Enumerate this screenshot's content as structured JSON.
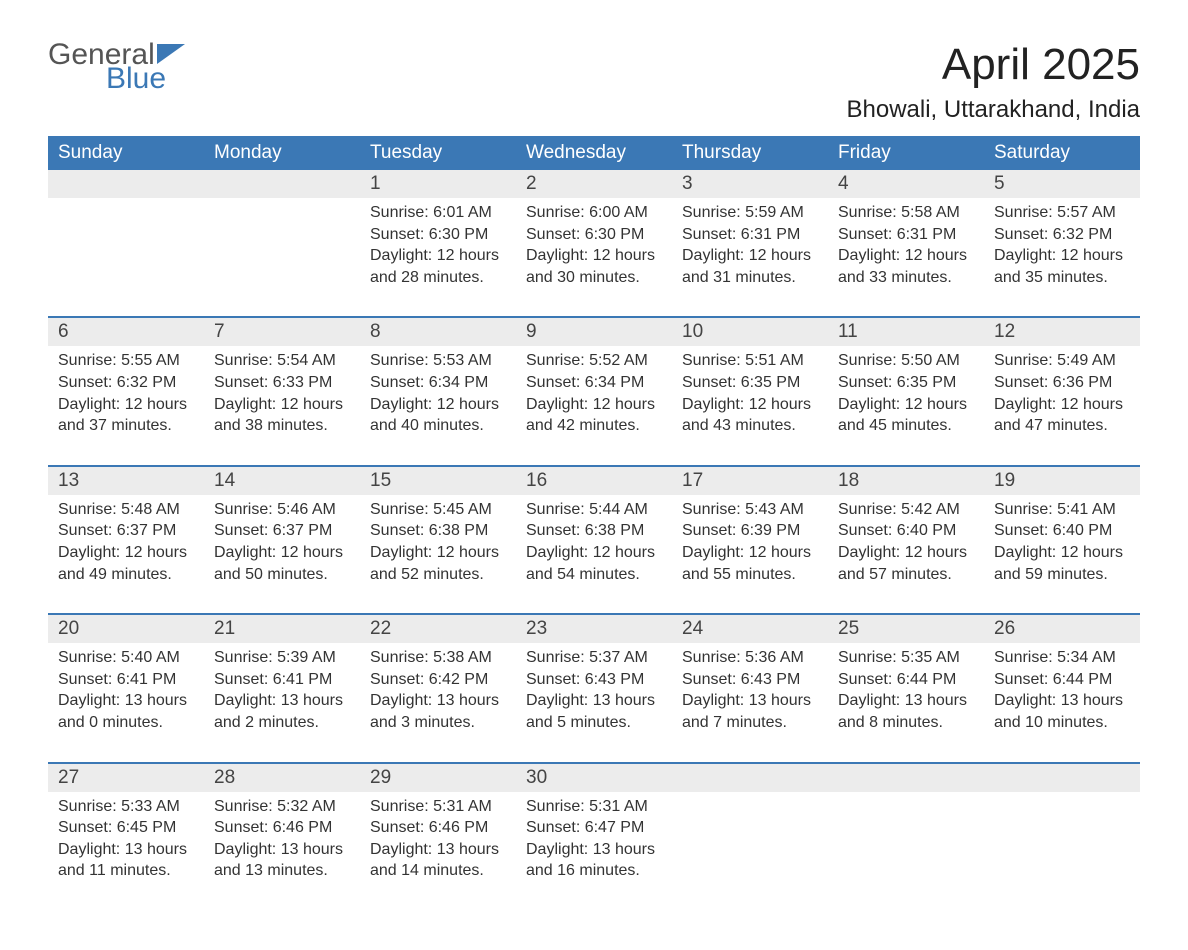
{
  "logo": {
    "word1": "General",
    "word2": "Blue",
    "flag_color": "#3b78b5",
    "word1_color": "#555555"
  },
  "title": "April 2025",
  "location": "Bhowali, Uttarakhand, India",
  "colors": {
    "header_bg": "#3b78b5",
    "header_text": "#ffffff",
    "daynum_bg": "#ececec",
    "row_divider": "#3b78b5",
    "body_text": "#333333",
    "page_bg": "#ffffff"
  },
  "layout": {
    "columns": 7,
    "rows": 5,
    "first_day_column": 2,
    "last_day": 30
  },
  "weekdays": [
    "Sunday",
    "Monday",
    "Tuesday",
    "Wednesday",
    "Thursday",
    "Friday",
    "Saturday"
  ],
  "labels": {
    "sunrise": "Sunrise",
    "sunset": "Sunset",
    "daylight_prefix": "Daylight",
    "and": "and",
    "minutes": "minutes.",
    "hours": "hours"
  },
  "days": [
    {
      "n": 1,
      "sunrise": "6:01 AM",
      "sunset": "6:30 PM",
      "dl_h": 12,
      "dl_m": 28
    },
    {
      "n": 2,
      "sunrise": "6:00 AM",
      "sunset": "6:30 PM",
      "dl_h": 12,
      "dl_m": 30
    },
    {
      "n": 3,
      "sunrise": "5:59 AM",
      "sunset": "6:31 PM",
      "dl_h": 12,
      "dl_m": 31
    },
    {
      "n": 4,
      "sunrise": "5:58 AM",
      "sunset": "6:31 PM",
      "dl_h": 12,
      "dl_m": 33
    },
    {
      "n": 5,
      "sunrise": "5:57 AM",
      "sunset": "6:32 PM",
      "dl_h": 12,
      "dl_m": 35
    },
    {
      "n": 6,
      "sunrise": "5:55 AM",
      "sunset": "6:32 PM",
      "dl_h": 12,
      "dl_m": 37
    },
    {
      "n": 7,
      "sunrise": "5:54 AM",
      "sunset": "6:33 PM",
      "dl_h": 12,
      "dl_m": 38
    },
    {
      "n": 8,
      "sunrise": "5:53 AM",
      "sunset": "6:34 PM",
      "dl_h": 12,
      "dl_m": 40
    },
    {
      "n": 9,
      "sunrise": "5:52 AM",
      "sunset": "6:34 PM",
      "dl_h": 12,
      "dl_m": 42
    },
    {
      "n": 10,
      "sunrise": "5:51 AM",
      "sunset": "6:35 PM",
      "dl_h": 12,
      "dl_m": 43
    },
    {
      "n": 11,
      "sunrise": "5:50 AM",
      "sunset": "6:35 PM",
      "dl_h": 12,
      "dl_m": 45
    },
    {
      "n": 12,
      "sunrise": "5:49 AM",
      "sunset": "6:36 PM",
      "dl_h": 12,
      "dl_m": 47
    },
    {
      "n": 13,
      "sunrise": "5:48 AM",
      "sunset": "6:37 PM",
      "dl_h": 12,
      "dl_m": 49
    },
    {
      "n": 14,
      "sunrise": "5:46 AM",
      "sunset": "6:37 PM",
      "dl_h": 12,
      "dl_m": 50
    },
    {
      "n": 15,
      "sunrise": "5:45 AM",
      "sunset": "6:38 PM",
      "dl_h": 12,
      "dl_m": 52
    },
    {
      "n": 16,
      "sunrise": "5:44 AM",
      "sunset": "6:38 PM",
      "dl_h": 12,
      "dl_m": 54
    },
    {
      "n": 17,
      "sunrise": "5:43 AM",
      "sunset": "6:39 PM",
      "dl_h": 12,
      "dl_m": 55
    },
    {
      "n": 18,
      "sunrise": "5:42 AM",
      "sunset": "6:40 PM",
      "dl_h": 12,
      "dl_m": 57
    },
    {
      "n": 19,
      "sunrise": "5:41 AM",
      "sunset": "6:40 PM",
      "dl_h": 12,
      "dl_m": 59
    },
    {
      "n": 20,
      "sunrise": "5:40 AM",
      "sunset": "6:41 PM",
      "dl_h": 13,
      "dl_m": 0
    },
    {
      "n": 21,
      "sunrise": "5:39 AM",
      "sunset": "6:41 PM",
      "dl_h": 13,
      "dl_m": 2
    },
    {
      "n": 22,
      "sunrise": "5:38 AM",
      "sunset": "6:42 PM",
      "dl_h": 13,
      "dl_m": 3
    },
    {
      "n": 23,
      "sunrise": "5:37 AM",
      "sunset": "6:43 PM",
      "dl_h": 13,
      "dl_m": 5
    },
    {
      "n": 24,
      "sunrise": "5:36 AM",
      "sunset": "6:43 PM",
      "dl_h": 13,
      "dl_m": 7
    },
    {
      "n": 25,
      "sunrise": "5:35 AM",
      "sunset": "6:44 PM",
      "dl_h": 13,
      "dl_m": 8
    },
    {
      "n": 26,
      "sunrise": "5:34 AM",
      "sunset": "6:44 PM",
      "dl_h": 13,
      "dl_m": 10
    },
    {
      "n": 27,
      "sunrise": "5:33 AM",
      "sunset": "6:45 PM",
      "dl_h": 13,
      "dl_m": 11
    },
    {
      "n": 28,
      "sunrise": "5:32 AM",
      "sunset": "6:46 PM",
      "dl_h": 13,
      "dl_m": 13
    },
    {
      "n": 29,
      "sunrise": "5:31 AM",
      "sunset": "6:46 PM",
      "dl_h": 13,
      "dl_m": 14
    },
    {
      "n": 30,
      "sunrise": "5:31 AM",
      "sunset": "6:47 PM",
      "dl_h": 13,
      "dl_m": 16
    }
  ]
}
